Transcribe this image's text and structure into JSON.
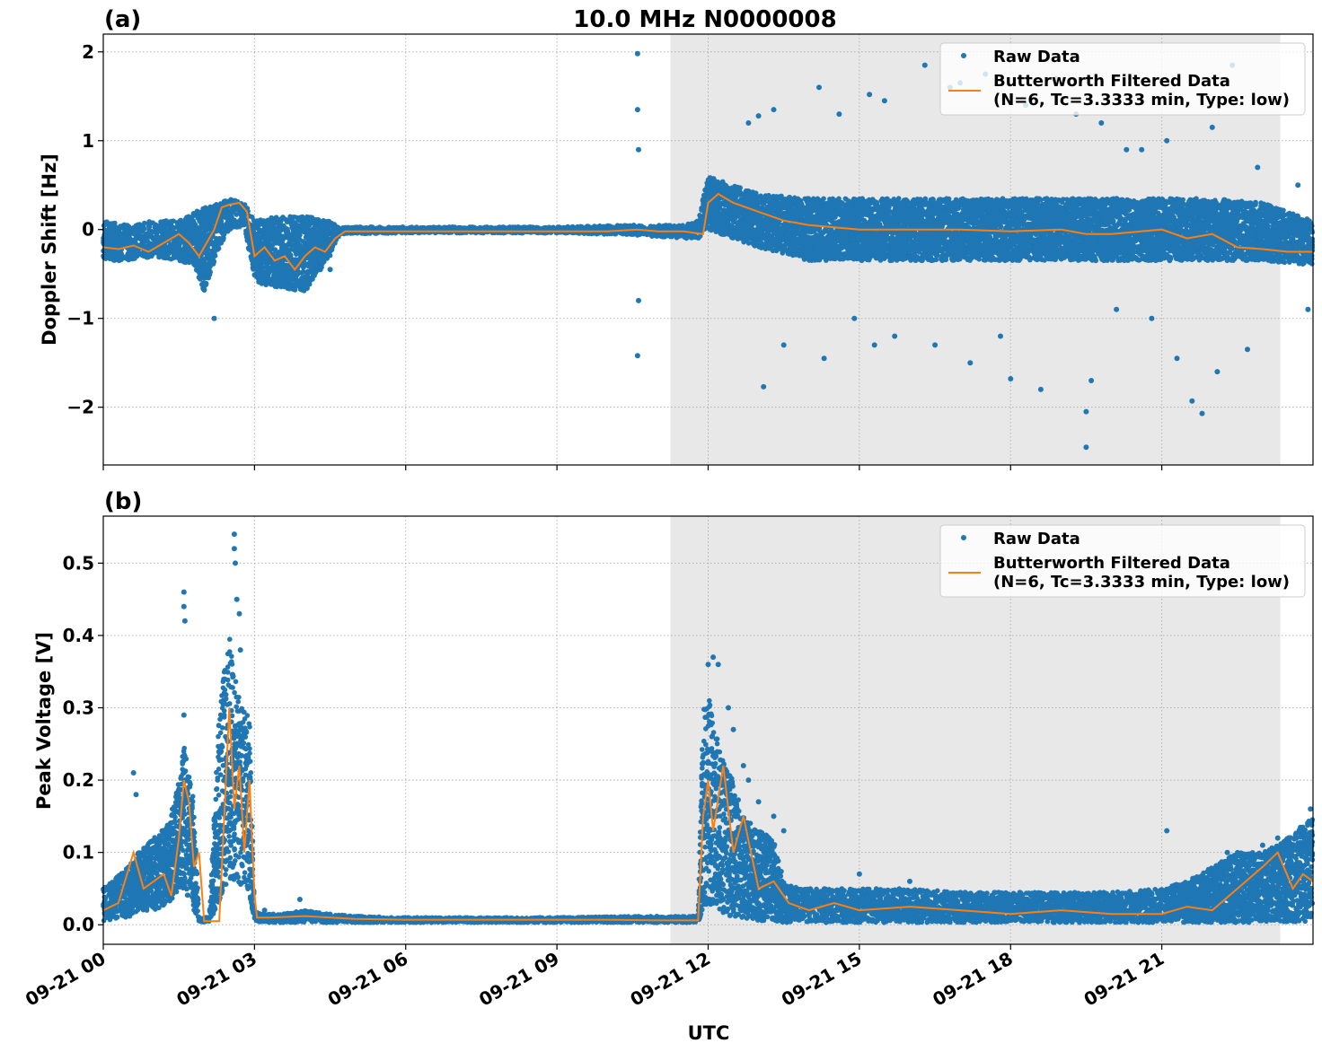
{
  "figure": {
    "title": "10.0 MHz N0000008",
    "xlabel": "UTC",
    "x_tick_labels": [
      "09-21 00",
      "09-21 03",
      "09-21 06",
      "09-21 09",
      "09-21 12",
      "09-21 15",
      "09-21 18",
      "09-21 21"
    ]
  },
  "colors": {
    "raw": "#1f77b4",
    "filtered": "#ff7f0e",
    "shade": "#e8e8e8",
    "grid": "#b0b0b0"
  },
  "chart_data": [
    {
      "type": "scatter",
      "panel_label": "(a)",
      "ylabel": "Doppler Shift [Hz]",
      "x_unit": "hours UTC since 09-21 00",
      "xlim": [
        0,
        24
      ],
      "ylim": [
        -2.65,
        2.2
      ],
      "y_ticks": [
        2,
        1,
        0,
        -1,
        -2
      ],
      "y_tick_labels": [
        "2",
        "1",
        "0",
        "−1",
        "−2"
      ],
      "x_ticks": [
        0,
        3,
        6,
        9,
        12,
        15,
        18,
        21
      ],
      "shaded_region": [
        11.25,
        23.35
      ],
      "grid": true,
      "legend_position": "top-right",
      "legend": [
        "Raw Data",
        "Butterworth Filtered Data",
        "(N=6, Tc=3.3333 min, Type: low)"
      ],
      "series": [
        {
          "name": "Raw Data",
          "band": {
            "x": [
              0,
              0.5,
              1.0,
              1.5,
              1.8,
              2.0,
              2.3,
              2.5,
              2.8,
              3.0,
              3.5,
              4.0,
              4.5,
              4.7,
              6.0,
              9.0,
              10.5,
              11.5,
              11.8,
              12.0,
              12.5,
              13.0,
              14.0,
              15.0,
              16.0,
              17.0,
              18.0,
              19.0,
              20.0,
              21.0,
              22.0,
              23.0,
              24.0
            ],
            "low": [
              -0.35,
              -0.35,
              -0.3,
              -0.35,
              -0.4,
              -0.7,
              -0.2,
              0.0,
              0.05,
              -0.6,
              -0.65,
              -0.7,
              -0.3,
              -0.05,
              -0.04,
              -0.04,
              -0.06,
              -0.1,
              -0.1,
              0.0,
              -0.1,
              -0.2,
              -0.35,
              -0.35,
              -0.35,
              -0.35,
              -0.35,
              -0.35,
              -0.35,
              -0.35,
              -0.35,
              -0.35,
              -0.4
            ],
            "high": [
              0.1,
              0.05,
              0.1,
              0.1,
              0.2,
              0.25,
              0.3,
              0.35,
              0.3,
              0.1,
              0.15,
              0.15,
              0.1,
              0.03,
              0.03,
              0.03,
              0.05,
              0.05,
              0.1,
              0.6,
              0.5,
              0.4,
              0.35,
              0.35,
              0.35,
              0.35,
              0.35,
              0.35,
              0.35,
              0.35,
              0.35,
              0.3,
              0.1
            ]
          },
          "outliers": [
            [
              10.6,
              1.98
            ],
            [
              10.6,
              1.35
            ],
            [
              10.6,
              -1.42
            ],
            [
              10.62,
              0.9
            ],
            [
              10.62,
              -0.8
            ],
            [
              2.2,
              -1.0
            ],
            [
              2.25,
              0.25
            ],
            [
              4.5,
              -0.45
            ],
            [
              12.8,
              1.2
            ],
            [
              13.0,
              1.28
            ],
            [
              13.1,
              -1.77
            ],
            [
              13.3,
              1.35
            ],
            [
              13.5,
              -1.3
            ],
            [
              14.2,
              1.6
            ],
            [
              14.3,
              -1.45
            ],
            [
              14.6,
              1.3
            ],
            [
              14.9,
              -1.0
            ],
            [
              15.2,
              1.52
            ],
            [
              15.3,
              -1.3
            ],
            [
              15.5,
              1.45
            ],
            [
              15.7,
              -1.2
            ],
            [
              16.3,
              1.85
            ],
            [
              16.5,
              -1.3
            ],
            [
              16.8,
              1.6
            ],
            [
              17.0,
              1.65
            ],
            [
              17.2,
              -1.5
            ],
            [
              17.5,
              1.75
            ],
            [
              17.8,
              -1.2
            ],
            [
              18.0,
              -1.68
            ],
            [
              18.3,
              1.4
            ],
            [
              18.6,
              -1.8
            ],
            [
              18.9,
              1.7
            ],
            [
              19.3,
              1.3
            ],
            [
              19.5,
              -2.45
            ],
            [
              19.5,
              -2.05
            ],
            [
              19.6,
              -1.7
            ],
            [
              19.8,
              1.2
            ],
            [
              20.1,
              -0.9
            ],
            [
              20.3,
              0.9
            ],
            [
              20.6,
              0.9
            ],
            [
              20.8,
              -1.0
            ],
            [
              21.1,
              1.0
            ],
            [
              21.3,
              -1.45
            ],
            [
              21.6,
              -1.93
            ],
            [
              21.8,
              -2.07
            ],
            [
              22.0,
              1.15
            ],
            [
              22.1,
              -1.6
            ],
            [
              22.4,
              1.85
            ],
            [
              22.7,
              -1.35
            ],
            [
              22.9,
              0.7
            ],
            [
              23.7,
              0.5
            ],
            [
              23.9,
              -0.9
            ]
          ]
        },
        {
          "name": "Butterworth Filtered Data",
          "x": [
            0,
            0.3,
            0.6,
            0.9,
            1.2,
            1.5,
            1.7,
            1.9,
            2.1,
            2.2,
            2.35,
            2.5,
            2.7,
            2.85,
            3.0,
            3.2,
            3.4,
            3.6,
            3.8,
            4.0,
            4.2,
            4.4,
            4.6,
            4.8,
            6.0,
            8.0,
            10.0,
            10.6,
            11.0,
            11.5,
            11.9,
            12.0,
            12.2,
            12.5,
            13.0,
            13.5,
            14.0,
            15.0,
            16.0,
            17.0,
            18.0,
            19.0,
            19.5,
            20.0,
            21.0,
            21.5,
            22.0,
            22.5,
            23.0,
            23.5,
            24.0
          ],
          "y": [
            -0.2,
            -0.22,
            -0.18,
            -0.25,
            -0.15,
            -0.05,
            -0.15,
            -0.3,
            -0.1,
            0.0,
            0.25,
            0.28,
            0.3,
            0.2,
            -0.3,
            -0.2,
            -0.35,
            -0.3,
            -0.45,
            -0.3,
            -0.2,
            -0.25,
            -0.1,
            -0.02,
            -0.02,
            -0.02,
            -0.02,
            0.0,
            -0.02,
            -0.02,
            -0.05,
            0.3,
            0.4,
            0.3,
            0.2,
            0.1,
            0.05,
            0.0,
            0.0,
            0.0,
            -0.02,
            0.0,
            -0.05,
            -0.05,
            0.0,
            -0.1,
            -0.05,
            -0.2,
            -0.22,
            -0.25,
            -0.25
          ]
        }
      ]
    },
    {
      "type": "scatter",
      "panel_label": "(b)",
      "ylabel": "Peak Voltage [V]",
      "x_unit": "hours UTC since 09-21 00",
      "xlim": [
        0,
        24
      ],
      "ylim": [
        -0.027,
        0.565
      ],
      "y_ticks": [
        0.5,
        0.4,
        0.3,
        0.2,
        0.1,
        0.0
      ],
      "y_tick_labels": [
        "0.5",
        "0.4",
        "0.3",
        "0.2",
        "0.1",
        "0.0"
      ],
      "x_ticks": [
        0,
        3,
        6,
        9,
        12,
        15,
        18,
        21
      ],
      "shaded_region": [
        11.25,
        23.35
      ],
      "grid": true,
      "legend_position": "top-right",
      "legend": [
        "Raw Data",
        "Butterworth Filtered Data",
        "(N=6, Tc=3.3333 min, Type: low)"
      ],
      "series": [
        {
          "name": "Raw Data",
          "band": {
            "x": [
              0,
              0.5,
              0.7,
              1.0,
              1.3,
              1.5,
              1.6,
              1.8,
              1.9,
              2.1,
              2.3,
              2.5,
              2.6,
              2.8,
              2.9,
              3.0,
              3.2,
              3.5,
              4.0,
              4.5,
              5.0,
              6.0,
              9.0,
              11.0,
              11.8,
              11.9,
              12.0,
              12.2,
              12.5,
              12.7,
              13.0,
              13.3,
              13.5,
              13.8,
              14.0,
              15.0,
              16.0,
              17.0,
              18.0,
              19.0,
              20.0,
              21.0,
              21.5,
              22.0,
              22.5,
              23.0,
              23.5,
              24.0
            ],
            "low": [
              0.005,
              0.01,
              0.02,
              0.02,
              0.03,
              0.05,
              0.05,
              0.02,
              0.004,
              0.004,
              0.03,
              0.06,
              0.05,
              0.05,
              0.04,
              0.005,
              0.003,
              0.003,
              0.003,
              0.003,
              0.003,
              0.003,
              0.003,
              0.003,
              0.003,
              0.02,
              0.03,
              0.02,
              0.01,
              0.01,
              0.005,
              0.005,
              0.003,
              0.003,
              0.003,
              0.003,
              0.003,
              0.003,
              0.003,
              0.003,
              0.003,
              0.003,
              0.003,
              0.003,
              0.003,
              0.003,
              0.003,
              0.005
            ],
            "high": [
              0.05,
              0.08,
              0.1,
              0.12,
              0.14,
              0.2,
              0.25,
              0.17,
              0.01,
              0.01,
              0.3,
              0.4,
              0.35,
              0.3,
              0.29,
              0.02,
              0.015,
              0.015,
              0.02,
              0.015,
              0.012,
              0.01,
              0.01,
              0.012,
              0.012,
              0.3,
              0.32,
              0.25,
              0.2,
              0.15,
              0.13,
              0.12,
              0.06,
              0.05,
              0.05,
              0.05,
              0.05,
              0.045,
              0.045,
              0.045,
              0.045,
              0.05,
              0.06,
              0.08,
              0.1,
              0.1,
              0.12,
              0.15
            ]
          },
          "outliers": [
            [
              1.6,
              0.46
            ],
            [
              1.6,
              0.44
            ],
            [
              1.62,
              0.42
            ],
            [
              1.6,
              0.29
            ],
            [
              2.6,
              0.54
            ],
            [
              2.6,
              0.52
            ],
            [
              2.62,
              0.5
            ],
            [
              2.65,
              0.45
            ],
            [
              2.7,
              0.43
            ],
            [
              2.72,
              0.38
            ],
            [
              0.6,
              0.21
            ],
            [
              0.65,
              0.18
            ],
            [
              3.2,
              0.02
            ],
            [
              3.9,
              0.035
            ],
            [
              12.1,
              0.37
            ],
            [
              12.0,
              0.36
            ],
            [
              12.2,
              0.36
            ],
            [
              12.4,
              0.3
            ],
            [
              12.5,
              0.27
            ],
            [
              12.7,
              0.22
            ],
            [
              12.8,
              0.2
            ],
            [
              13.0,
              0.17
            ],
            [
              13.3,
              0.15
            ],
            [
              13.5,
              0.13
            ],
            [
              15.0,
              0.07
            ],
            [
              16.0,
              0.06
            ],
            [
              21.1,
              0.13
            ],
            [
              22.3,
              0.1
            ],
            [
              23.0,
              0.11
            ],
            [
              23.3,
              0.12
            ],
            [
              23.8,
              0.13
            ],
            [
              23.95,
              0.16
            ]
          ]
        },
        {
          "name": "Butterworth Filtered Data",
          "x": [
            0,
            0.3,
            0.6,
            0.8,
            1.0,
            1.2,
            1.35,
            1.5,
            1.6,
            1.7,
            1.8,
            1.9,
            2.0,
            2.3,
            2.4,
            2.5,
            2.6,
            2.7,
            2.8,
            2.9,
            3.0,
            3.05,
            3.3,
            4.0,
            5.0,
            6.0,
            8.0,
            10.0,
            11.0,
            11.8,
            11.9,
            12.0,
            12.1,
            12.3,
            12.5,
            12.7,
            13.0,
            13.3,
            13.6,
            14.0,
            14.5,
            15.0,
            16.0,
            17.0,
            18.0,
            19.0,
            20.0,
            21.0,
            21.5,
            22.0,
            22.5,
            23.0,
            23.3,
            23.6,
            23.8,
            24.0
          ],
          "y": [
            0.02,
            0.03,
            0.1,
            0.05,
            0.06,
            0.07,
            0.04,
            0.12,
            0.2,
            0.17,
            0.08,
            0.1,
            0.005,
            0.005,
            0.15,
            0.3,
            0.16,
            0.22,
            0.1,
            0.2,
            0.04,
            0.01,
            0.01,
            0.012,
            0.008,
            0.007,
            0.007,
            0.007,
            0.006,
            0.006,
            0.15,
            0.2,
            0.13,
            0.22,
            0.1,
            0.15,
            0.05,
            0.06,
            0.03,
            0.02,
            0.03,
            0.02,
            0.025,
            0.02,
            0.015,
            0.02,
            0.015,
            0.015,
            0.025,
            0.02,
            0.05,
            0.08,
            0.1,
            0.05,
            0.07,
            0.06
          ]
        }
      ]
    }
  ]
}
